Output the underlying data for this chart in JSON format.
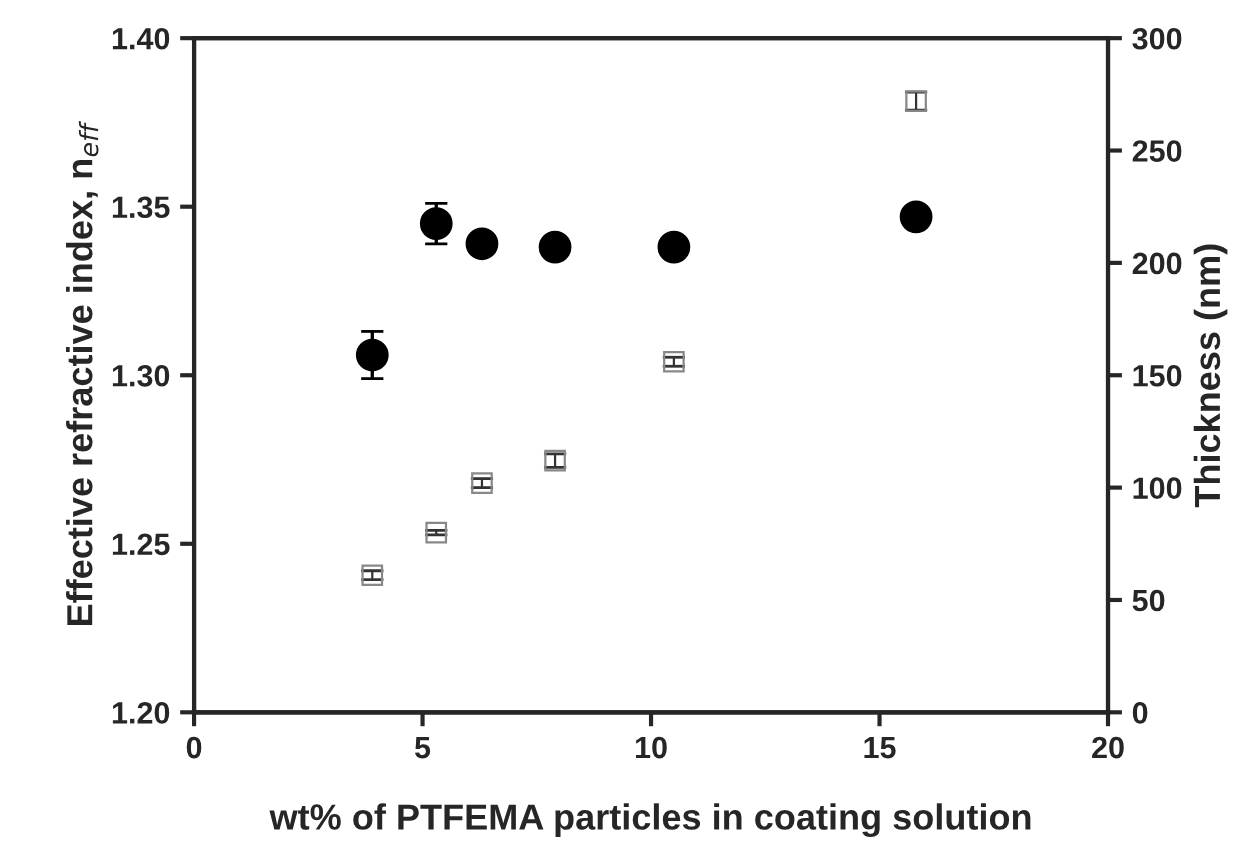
{
  "chart_data": {
    "type": "scatter",
    "xlabel": "wt% of PTFEMA particles in coating solution",
    "ylabel": "Effective refractive index, n$_{eff}$",
    "y2label": "Thickness (nm)",
    "x": [
      3.9,
      5.3,
      6.3,
      7.9,
      10.5,
      15.8
    ],
    "series": [
      {
        "color": "#000000",
        "marker": "circle",
        "values": [
          1.306,
          1.345,
          1.339,
          1.338,
          1.338,
          1.347
        ],
        "errors": [
          0.007,
          0.006,
          0.003,
          null,
          0.002,
          0.002
        ]
      },
      {
        "color": "#888888",
        "marker": "square",
        "axis": "y2",
        "values": [
          61,
          80,
          102,
          112,
          156,
          272
        ],
        "errors": [
          2,
          1,
          2,
          3,
          2,
          4
        ]
      }
    ],
    "xlim": [
      0,
      20
    ],
    "xticks": [
      0,
      5,
      10,
      15,
      20
    ],
    "ylim": [
      1.2,
      1.4
    ],
    "yticks": [
      {
        "value": 1.2,
        "label": "1.20"
      },
      {
        "value": 1.25,
        "label": "1.25"
      },
      {
        "value": 1.3,
        "label": "1.30"
      },
      {
        "value": 1.35,
        "label": "1.35"
      },
      {
        "value": 1.4,
        "label": "1.40"
      }
    ],
    "y2lim": [
      0,
      300
    ],
    "y2ticks": [
      0,
      50,
      100,
      150,
      200,
      250,
      300
    ],
    "grid": false,
    "legend": false
  }
}
